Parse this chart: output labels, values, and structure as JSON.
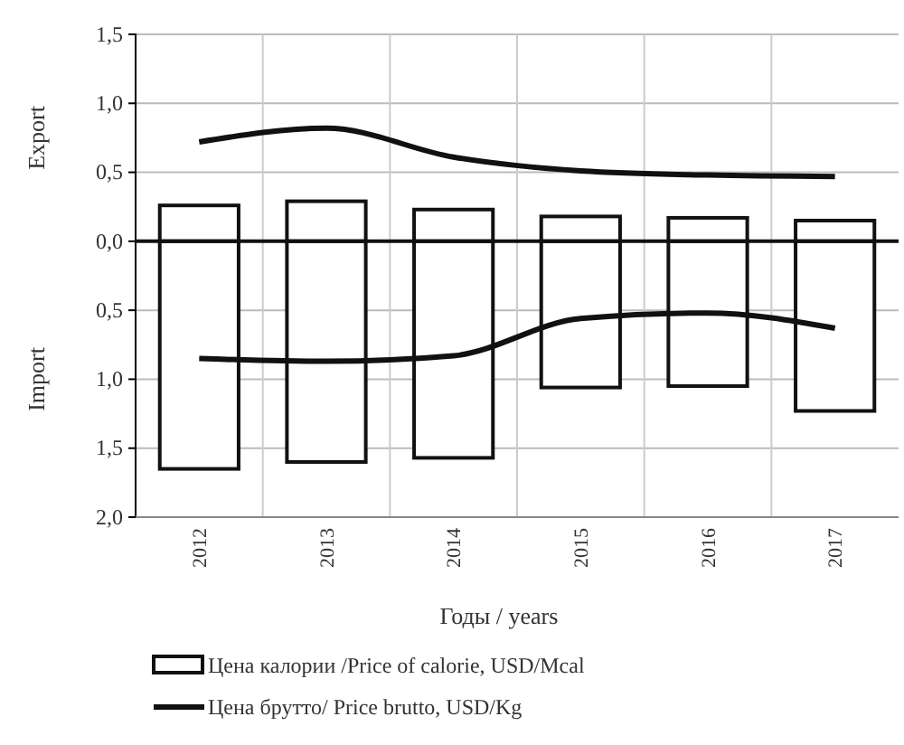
{
  "chart_data": {
    "type": "bar",
    "stacked": true,
    "categories": [
      "2012",
      "2013",
      "2014",
      "2015",
      "2016",
      "2017"
    ],
    "series": [
      {
        "name": "Цена калории /Price of calorie, USD/Mcal",
        "color": "#ffffff",
        "values": [
          0.26,
          0.29,
          0.23,
          0.18,
          0.17,
          0.15
        ]
      },
      {
        "color": "#ffffff",
        "values": [
          -1.65,
          -1.6,
          -1.57,
          -1.06,
          -1.05,
          -1.23
        ]
      },
      {
        "type": "line",
        "name": "Цена брутто/ Price brutto,  USD/Kg",
        "color": "#111111",
        "values": [
          0.72,
          0.82,
          0.61,
          0.51,
          0.48,
          0.47
        ]
      },
      {
        "type": "line",
        "color": "#111111",
        "values": [
          -0.85,
          -0.87,
          -0.83,
          -0.56,
          -0.52,
          -0.63
        ]
      }
    ],
    "ylim": [
      -2,
      1.5
    ],
    "yticks": [
      {
        "value": 1.5,
        "label": "1,5"
      },
      {
        "value": 1,
        "label": "1,0"
      },
      {
        "value": 0.5,
        "label": "0,5"
      },
      {
        "value": 0,
        "label": "0,0"
      },
      {
        "value": -0.5,
        "label": "0,5"
      },
      {
        "value": -1,
        "label": "1,0"
      },
      {
        "value": -1.5,
        "label": "1,5"
      },
      {
        "value": -2,
        "label": "2,0"
      }
    ],
    "xlabel": "Годы / years",
    "ylabel": "Export",
    "annotations": [
      "Import"
    ],
    "grid": true,
    "legend": "bottom",
    "line_style": "solid",
    "marker": "none"
  }
}
